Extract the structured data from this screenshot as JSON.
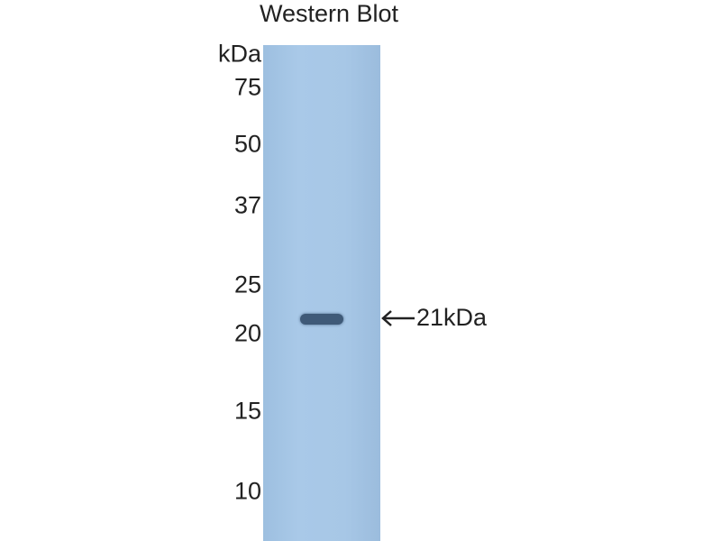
{
  "title": "Western Blot",
  "unit_label": "kDa",
  "markers": [
    "75",
    "50",
    "37",
    "25",
    "20",
    "15",
    "10"
  ],
  "band_annotation": "21kDa",
  "colors": {
    "membrane": "#a7c7e6",
    "band": "#3f5a78"
  },
  "icons": {
    "annotation_arrow": "left-arrow-icon"
  }
}
